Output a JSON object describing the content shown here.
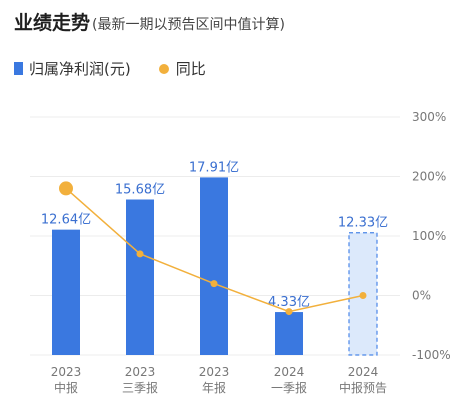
{
  "title": "业绩走势",
  "subtitle": "(最新一期以预告区间中值计算)",
  "chart_data": {
    "type": "bar",
    "categories": [
      "2023\n中报",
      "2023\n三季报",
      "2023\n年报",
      "2024\n一季报",
      "2024\n中报预告"
    ],
    "series": [
      {
        "name": "归属净利润(元)",
        "type": "bar",
        "values": [
          12.64,
          15.68,
          17.91,
          4.33,
          12.33
        ],
        "labels": [
          "12.64亿",
          "15.68亿",
          "17.91亿",
          "4.33亿",
          "12.33亿"
        ],
        "forecast_index": 4
      },
      {
        "name": "同比",
        "type": "line",
        "values": [
          180,
          70,
          20,
          -27,
          0
        ],
        "axis": "right"
      }
    ],
    "y_right": {
      "ticks": [
        "300%",
        "200%",
        "100%",
        "0%",
        "-100%"
      ],
      "range": [
        -100,
        300
      ]
    },
    "bar_range": [
      0,
      24
    ],
    "grid": true,
    "legend_position": "top-left",
    "colors": {
      "bar": "#3a78e0",
      "bar_forecast_fill": "#dce9fb",
      "bar_forecast_border": "#4a86e8",
      "line": "#f2b03c",
      "label": "#3a6fd0",
      "grid": "#ececec",
      "axis_text": "#777777"
    }
  }
}
